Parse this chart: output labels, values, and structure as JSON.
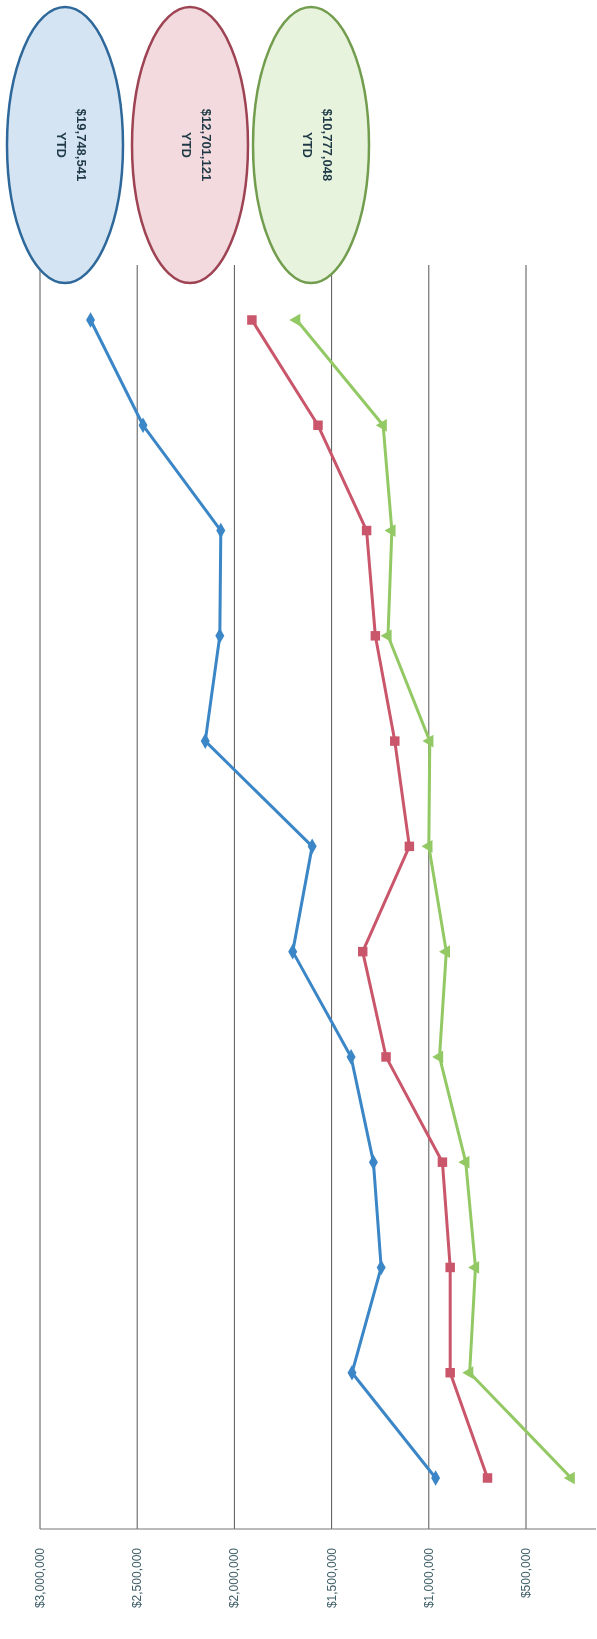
{
  "chart_data": {
    "type": "line",
    "categories": [
      null,
      null,
      null,
      null,
      null,
      null,
      null,
      null,
      null,
      null,
      null,
      null
    ],
    "series": [
      {
        "color": "#3b86c6",
        "marker": "diamond",
        "values": [
          2740000,
          2470000,
          2070000,
          2075000,
          2150000,
          1600000,
          1700000,
          1400000,
          1285000,
          1245000,
          1395000,
          965000
        ]
      },
      {
        "color": "#c9566a",
        "marker": "square",
        "values": [
          1910000,
          1570000,
          1320000,
          1275000,
          1175000,
          1100000,
          1340000,
          1220000,
          930000,
          890000,
          890000,
          698000
        ]
      },
      {
        "color": "#93c964",
        "marker": "triangle",
        "values": [
          1680000,
          1235000,
          1190000,
          1210000,
          995000,
          1000000,
          910000,
          945000,
          810000,
          760000,
          790000,
          268000
        ]
      }
    ],
    "orientation": "horizontal",
    "xlim": [
      3000000,
      140000
    ],
    "xticks": [
      {
        "value": 3000000,
        "label": "$3,000,000"
      },
      {
        "value": 2500000,
        "label": "$2,500,000"
      },
      {
        "value": 2000000,
        "label": "$2,000,000"
      },
      {
        "value": 1500000,
        "label": "$1,500,000"
      },
      {
        "value": 1000000,
        "label": "$1,000,000"
      },
      {
        "value": 500000,
        "label": "$500,000"
      }
    ],
    "grid": "x",
    "annotations": [
      "YTD\n$19,748,541",
      "YTD\n$12,701,121",
      "YTD\n$10,777,048"
    ]
  }
}
